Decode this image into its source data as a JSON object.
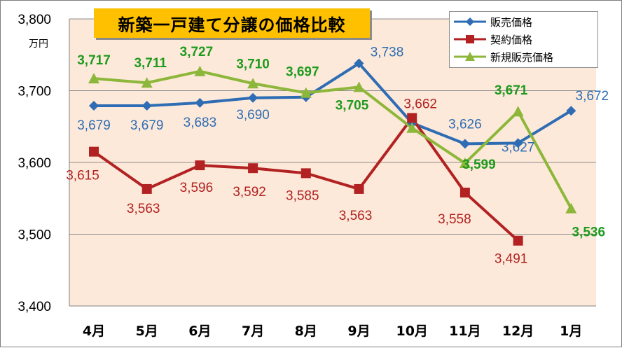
{
  "chart_data": {
    "type": "line",
    "title": "新築一戸建て分譲の価格比較",
    "ylabel": "万円",
    "categories": [
      "4月",
      "5月",
      "6月",
      "7月",
      "8月",
      "9月",
      "10月",
      "11月",
      "12月",
      "1月"
    ],
    "ylim": [
      3400,
      3800
    ],
    "yticks": [
      "3,400",
      "3,500",
      "3,600",
      "3,700",
      "3,800"
    ],
    "ytick_values": [
      3400,
      3500,
      3600,
      3700,
      3800
    ],
    "grid": true,
    "legend_position": "top-right",
    "series": [
      {
        "name": "販売価格",
        "color": "#2e6db4",
        "marker": "diamond",
        "values": [
          3679,
          3679,
          3683,
          3690,
          3691,
          3738,
          3655,
          3626,
          3627,
          3672
        ],
        "labels": [
          "3,679",
          "3,679",
          "3,683",
          "3,690",
          "",
          "3,738",
          "",
          "3,626",
          "3,627",
          "3,672"
        ]
      },
      {
        "name": "契約価格",
        "color": "#b22222",
        "marker": "square",
        "values": [
          3615,
          3563,
          3596,
          3592,
          3585,
          3563,
          3662,
          3558,
          3491,
          null
        ],
        "labels": [
          "3,615",
          "3,563",
          "3,596",
          "3,592",
          "3,585",
          "3,563",
          "3,662",
          "3,558",
          "3,491",
          ""
        ]
      },
      {
        "name": "新規販売価格",
        "color": "#8db73a",
        "label_color": "#1e9a1e",
        "marker": "triangle",
        "values": [
          3717,
          3711,
          3727,
          3710,
          3697,
          3705,
          3648,
          3599,
          3671,
          3536
        ],
        "labels": [
          "3,717",
          "3,711",
          "3,727",
          "3,710",
          "3,697",
          "3,705",
          "",
          "3,599",
          "3,671",
          "3,536"
        ]
      }
    ]
  }
}
